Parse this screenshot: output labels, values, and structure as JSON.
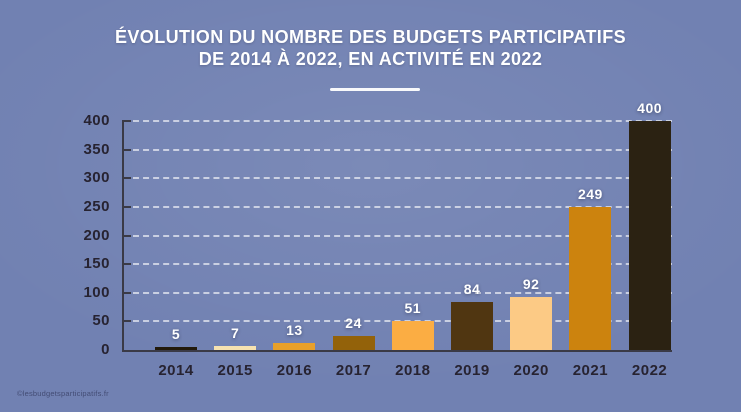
{
  "page": {
    "title_line1": "ÉVOLUTION DU NOMBRE DES BUDGETS PARTICIPATIFS",
    "title_line2": "DE 2014 À 2022, EN ACTIVITÉ EN 2022",
    "footer_credit": "©lesbudgetsparticipatifs.fr"
  },
  "colors": {
    "background": "#7181b2",
    "title_text": "#ffffff",
    "axis_line": "#3a3a46",
    "tick_label_text": "#272331",
    "gridline": "#ffffff",
    "value_label_text": "#ffffff"
  },
  "chart_data": {
    "type": "bar",
    "title": "ÉVOLUTION DU NOMBRE DES BUDGETS PARTICIPATIFS DE 2014 À 2022, EN ACTIVITÉ EN 2022",
    "categories": [
      "2014",
      "2015",
      "2016",
      "2017",
      "2018",
      "2019",
      "2020",
      "2021",
      "2022"
    ],
    "values": [
      5,
      7,
      13,
      24,
      51,
      84,
      92,
      249,
      400
    ],
    "value_labels": [
      "5",
      "7",
      "13",
      "24",
      "51",
      "84",
      "92",
      "249",
      "400"
    ],
    "bar_colors": [
      "#231a0b",
      "#f6e2b0",
      "#e8a02a",
      "#93620a",
      "#fbad43",
      "#503611",
      "#fcca85",
      "#cc830e",
      "#2b2212"
    ],
    "xlabel": "",
    "ylabel": "",
    "ylim": [
      0,
      400
    ],
    "yticks": [
      0,
      50,
      100,
      150,
      200,
      250,
      300,
      350,
      400
    ],
    "grid": "horizontal-dashed-white",
    "legend": "none",
    "value_labels_shown": true
  }
}
